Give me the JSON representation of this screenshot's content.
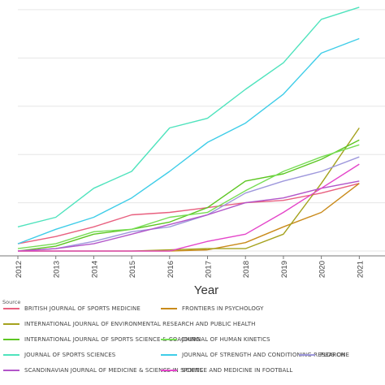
{
  "chart_data": {
    "type": "line",
    "xlabel": "Year",
    "ylabel": "",
    "x": [
      2012,
      2013,
      2014,
      2015,
      2016,
      2017,
      2018,
      2019,
      2020,
      2021
    ],
    "xlim": [
      2012,
      2020.8
    ],
    "ylim": [
      -0.2,
      10.4
    ],
    "grid": true,
    "legend_title": "Source",
    "legend_position": "bottom",
    "series": [
      {
        "name": "BRITISH JOURNAL OF SPORTS MEDICINE",
        "color": "#e8607f",
        "values": [
          0.3,
          0.6,
          1.0,
          1.5,
          1.6,
          1.8,
          2.0,
          2.1,
          2.4,
          2.8
        ]
      },
      {
        "name": "FRONTIERS IN PSYCHOLOGY",
        "color": "#c98a1a",
        "values": [
          0.0,
          0.0,
          0.0,
          0.0,
          0.0,
          0.05,
          0.35,
          1.0,
          1.6,
          2.8
        ]
      },
      {
        "name": "INTERNATIONAL JOURNAL OF ENVIRONMENTAL RESEARCH AND PUBLIC HEALTH",
        "color": "#a5a21e",
        "values": [
          0.0,
          0.0,
          0.0,
          0.0,
          0.05,
          0.1,
          0.1,
          0.7,
          2.8,
          5.1
        ]
      },
      {
        "name": "INTERNATIONAL JOURNAL OF SPORTS SCIENCE & COACHING",
        "color": "#5cc622",
        "values": [
          0.0,
          0.2,
          0.7,
          0.9,
          1.2,
          1.8,
          2.9,
          3.2,
          3.8,
          4.6
        ]
      },
      {
        "name": "JOURNAL OF HUMAN KINETICS",
        "color": "#77dd55",
        "values": [
          0.1,
          0.3,
          0.8,
          0.9,
          1.4,
          1.6,
          2.5,
          3.3,
          3.9,
          4.4
        ]
      },
      {
        "name": "JOURNAL OF SPORTS SCIENCES",
        "color": "#4fe3bd",
        "values": [
          1.0,
          1.4,
          2.6,
          3.3,
          5.1,
          5.5,
          6.7,
          7.8,
          9.6,
          10.1
        ]
      },
      {
        "name": "JOURNAL OF STRENGTH AND CONDITIONING RESEARCH",
        "color": "#3fcde8",
        "values": [
          0.3,
          0.9,
          1.4,
          2.2,
          3.3,
          4.5,
          5.3,
          6.5,
          8.2,
          8.8
        ]
      },
      {
        "name": "PLOS ONE",
        "color": "#9e98dc",
        "values": [
          0.0,
          0.1,
          0.4,
          0.8,
          1.0,
          1.5,
          2.4,
          2.9,
          3.3,
          3.9
        ]
      },
      {
        "name": "SCANDINAVIAN JOURNAL OF MEDICINE & SCIENCE IN SPORTS",
        "color": "#b255c9",
        "values": [
          0.0,
          0.1,
          0.3,
          0.7,
          1.1,
          1.5,
          2.0,
          2.2,
          2.6,
          2.9
        ]
      },
      {
        "name": "SCIENCE AND MEDICINE IN FOOTBALL",
        "color": "#e445c9",
        "values": [
          0.0,
          0.0,
          0.0,
          0.0,
          0.0,
          0.4,
          0.7,
          1.6,
          2.6,
          3.6
        ]
      }
    ]
  }
}
